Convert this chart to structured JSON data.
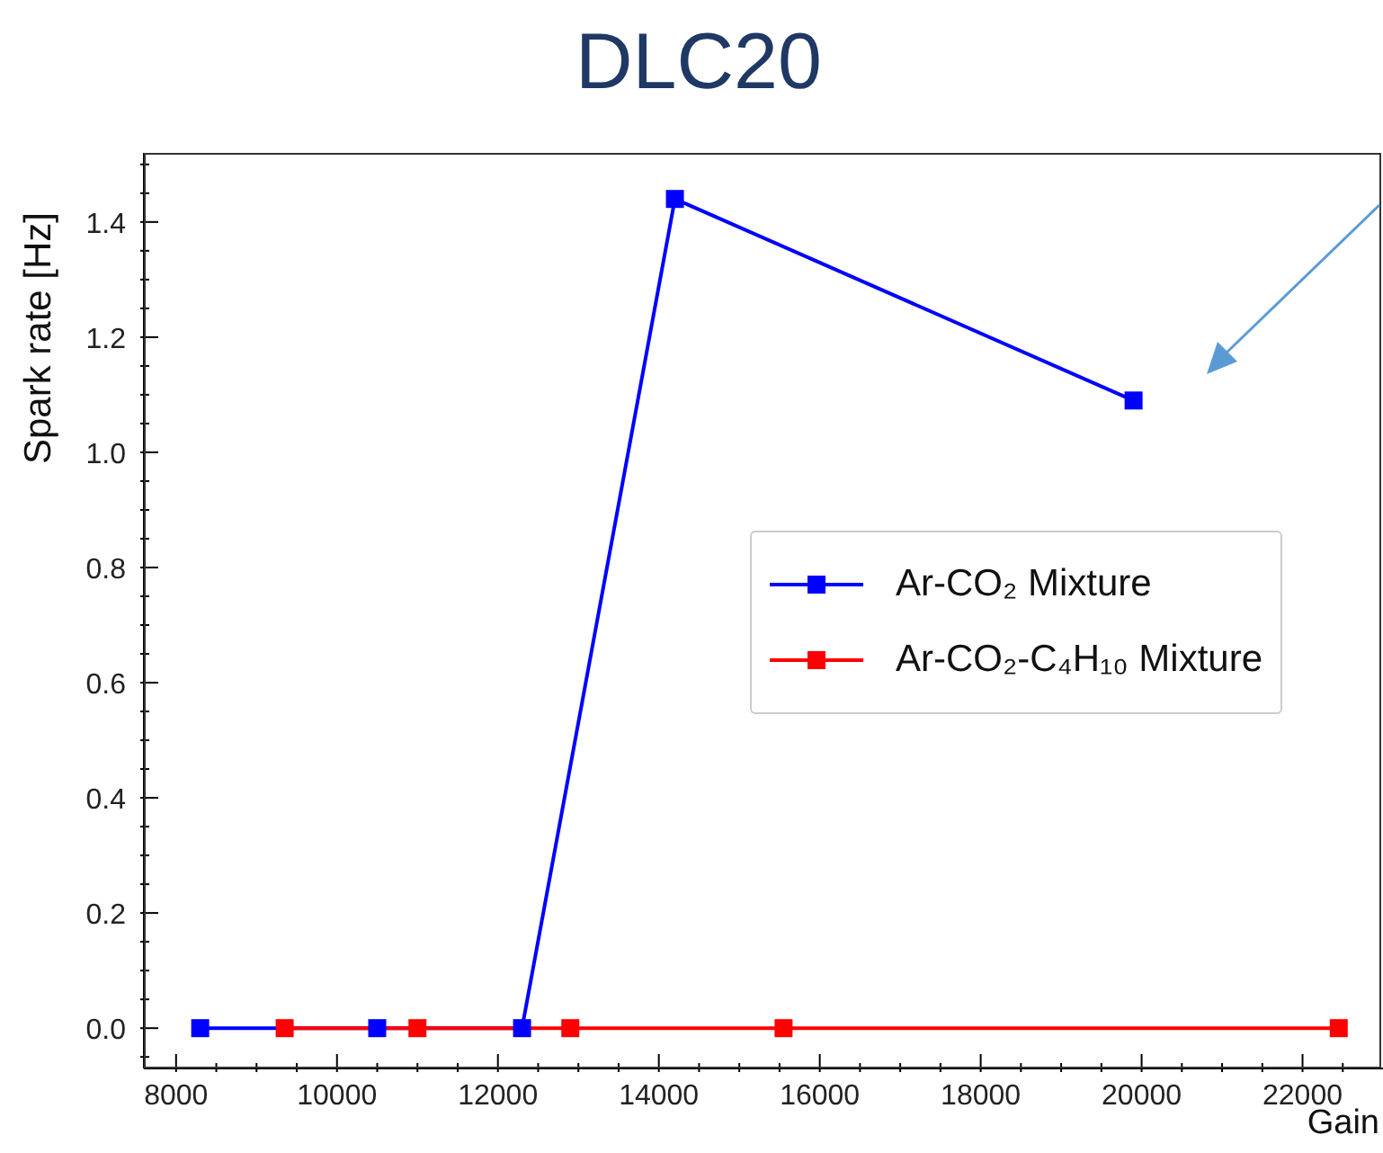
{
  "chart_data": {
    "type": "line",
    "title": "DLC20",
    "xlabel": "Gain",
    "ylabel": "Spark rate [Hz]",
    "series": [
      {
        "name": "Ar-CO₂ Mixture",
        "color": "#0000ff",
        "x": [
          8300,
          10500,
          12300,
          14200,
          19900
        ],
        "values": [
          0,
          0,
          0,
          1.44,
          1.09
        ]
      },
      {
        "name": "Ar-CO₂-C₄H₁₀ Mixture",
        "color": "#ff0000",
        "x": [
          9350,
          11000,
          12900,
          15550,
          22450
        ],
        "values": [
          0,
          0,
          0,
          0,
          0
        ]
      }
    ],
    "xlim": [
      7600,
      23000
    ],
    "xticks": [
      8000,
      {
        "value": 8500,
        "label": null
      },
      {
        "value": 9000,
        "label": null
      },
      {
        "value": 9500,
        "label": null
      },
      10000,
      {
        "value": 10500,
        "label": null
      },
      {
        "value": 11000,
        "label": null
      },
      {
        "value": 11500,
        "label": null
      },
      12000,
      {
        "value": 12500,
        "label": null
      },
      {
        "value": 13000,
        "label": null
      },
      {
        "value": 13500,
        "label": null
      },
      14000,
      {
        "value": 14500,
        "label": null
      },
      {
        "value": 15000,
        "label": null
      },
      {
        "value": 15500,
        "label": null
      },
      16000,
      {
        "value": 16500,
        "label": null
      },
      {
        "value": 17000,
        "label": null
      },
      {
        "value": 17500,
        "label": null
      },
      18000,
      {
        "value": 18500,
        "label": null
      },
      {
        "value": 19000,
        "label": null
      },
      {
        "value": 19500,
        "label": null
      },
      20000,
      {
        "value": 20500,
        "label": null
      },
      {
        "value": 21000,
        "label": null
      },
      {
        "value": 21500,
        "label": null
      },
      22000,
      {
        "value": 22500,
        "label": null
      }
    ],
    "ylim": [
      -0.07,
      1.52
    ],
    "yticks": [
      {
        "value": -0.05,
        "label": null
      },
      {
        "value": 0,
        "label": "0.0"
      },
      {
        "value": 0.05,
        "label": null
      },
      {
        "value": 0.1,
        "label": null
      },
      {
        "value": 0.15,
        "label": null
      },
      0.2,
      {
        "value": 0.25,
        "label": null
      },
      {
        "value": 0.3,
        "label": null
      },
      {
        "value": 0.35,
        "label": null
      },
      0.4,
      {
        "value": 0.45,
        "label": null
      },
      {
        "value": 0.5,
        "label": null
      },
      {
        "value": 0.55,
        "label": null
      },
      0.6,
      {
        "value": 0.65,
        "label": null
      },
      {
        "value": 0.7,
        "label": null
      },
      {
        "value": 0.75,
        "label": null
      },
      0.8,
      {
        "value": 0.85,
        "label": null
      },
      {
        "value": 0.9,
        "label": null
      },
      {
        "value": 0.95,
        "label": null
      },
      {
        "value": 1,
        "label": "1.0"
      },
      {
        "value": 1.05,
        "label": null
      },
      {
        "value": 1.1,
        "label": null
      },
      {
        "value": 1.15,
        "label": null
      },
      1.2,
      {
        "value": 1.25,
        "label": null
      },
      {
        "value": 1.3,
        "label": null
      },
      {
        "value": 1.35,
        "label": null
      },
      1.4,
      {
        "value": 1.45,
        "label": null
      },
      {
        "value": 1.5,
        "label": null
      }
    ],
    "legend": "right",
    "marker": "square",
    "line_style": "solid",
    "grid": false
  }
}
